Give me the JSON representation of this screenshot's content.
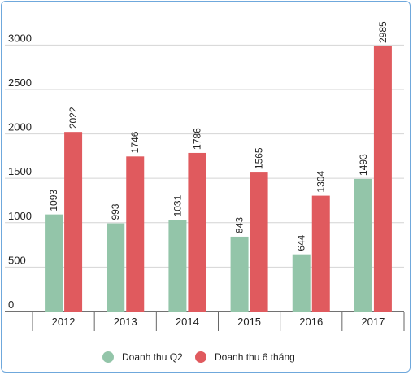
{
  "chart_data": {
    "type": "bar",
    "categories": [
      "2012",
      "2013",
      "2014",
      "2015",
      "2016",
      "2017"
    ],
    "series": [
      {
        "name": "Doanh thu Q2",
        "color": "#93c5a9",
        "values": [
          1093,
          993,
          1031,
          843,
          644,
          1493
        ]
      },
      {
        "name": "Doanh thu 6 tháng",
        "color": "#e05a5e",
        "values": [
          2022,
          1746,
          1786,
          1565,
          1304,
          2985
        ]
      }
    ],
    "title": "",
    "xlabel": "",
    "ylabel": "",
    "ylim": [
      0,
      3250
    ],
    "yticks": [
      0,
      500,
      1000,
      1500,
      2000,
      2500,
      3000
    ],
    "grid": true,
    "legend": "bottom"
  }
}
